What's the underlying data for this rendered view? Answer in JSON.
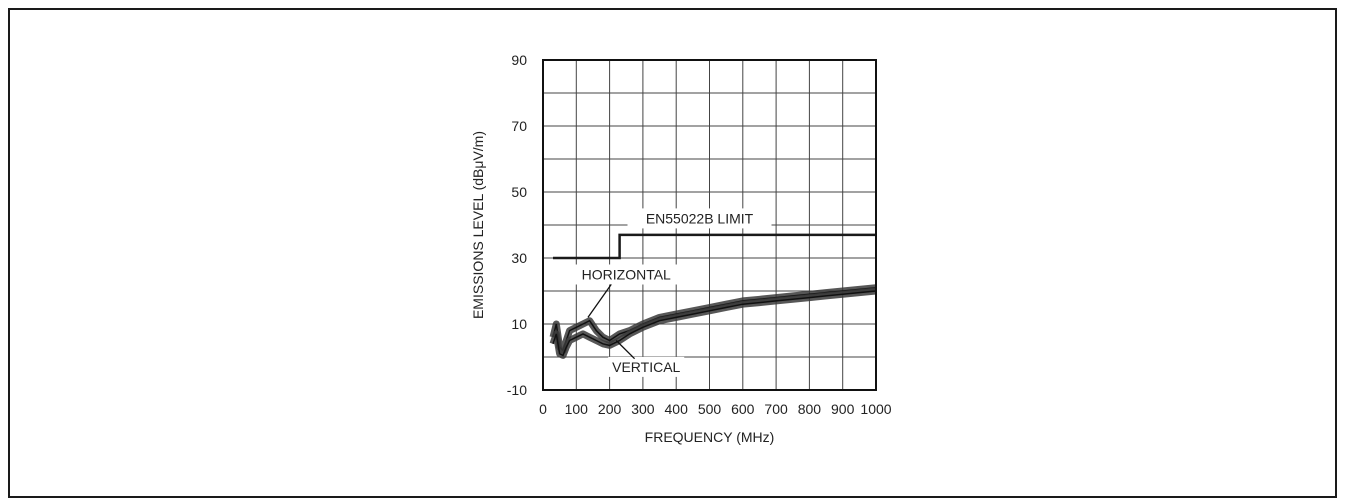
{
  "chart_data": {
    "type": "line",
    "title": "",
    "xlabel": "FREQUENCY (MHz)",
    "ylabel": "EMISSIONS LEVEL (dBμV/m)",
    "xlim": [
      0,
      1000
    ],
    "ylim": [
      -10,
      90
    ],
    "x_ticks": [
      0,
      100,
      200,
      300,
      400,
      500,
      600,
      700,
      800,
      900,
      1000
    ],
    "x_tick_labels": [
      "0",
      "100",
      "200",
      "300",
      "400",
      "500",
      "600",
      "700",
      "800",
      "900",
      "1000"
    ],
    "y_ticks": [
      -10,
      10,
      30,
      50,
      70,
      90
    ],
    "y_tick_labels": [
      "-10",
      "10",
      "30",
      "50",
      "70",
      "90"
    ],
    "grid": true,
    "series": [
      {
        "name": "EN55022B LIMIT",
        "color": "#1a1a1a",
        "x": [
          30,
          230,
          230,
          1000
        ],
        "y": [
          30,
          30,
          37,
          37
        ]
      },
      {
        "name": "HORIZONTAL",
        "color": "#3a3a3a",
        "x": [
          30,
          40,
          50,
          60,
          70,
          80,
          100,
          120,
          140,
          160,
          180,
          200,
          230,
          260,
          300,
          350,
          400,
          450,
          500,
          550,
          600,
          650,
          700,
          750,
          800,
          850,
          900,
          950,
          1000
        ],
        "y": [
          6,
          10,
          3,
          2,
          5,
          8,
          9,
          10,
          11,
          8,
          6,
          5,
          7,
          8,
          10,
          12,
          13,
          14,
          15,
          16,
          17,
          17.5,
          18,
          18.5,
          19,
          19.5,
          20,
          20.5,
          21
        ]
      },
      {
        "name": "VERTICAL",
        "color": "#3a3a3a",
        "x": [
          30,
          40,
          50,
          60,
          70,
          80,
          100,
          120,
          140,
          160,
          180,
          200,
          230,
          260,
          300,
          350,
          400,
          450,
          500,
          550,
          600,
          650,
          700,
          750,
          800,
          850,
          900,
          950,
          1000
        ],
        "y": [
          4,
          7,
          1,
          0.5,
          3,
          5,
          6,
          7,
          6,
          5,
          4,
          3.5,
          5,
          7,
          9,
          11,
          12,
          13,
          14,
          15,
          16,
          16.5,
          17,
          17.5,
          18,
          18.5,
          19,
          19.5,
          20
        ]
      }
    ],
    "annotations": [
      {
        "text": "EN55022B LIMIT",
        "x": 470,
        "y": 42
      },
      {
        "text": "HORIZONTAL",
        "x": 250,
        "y": 25
      },
      {
        "text": "VERTICAL",
        "x": 310,
        "y": -3
      }
    ]
  }
}
